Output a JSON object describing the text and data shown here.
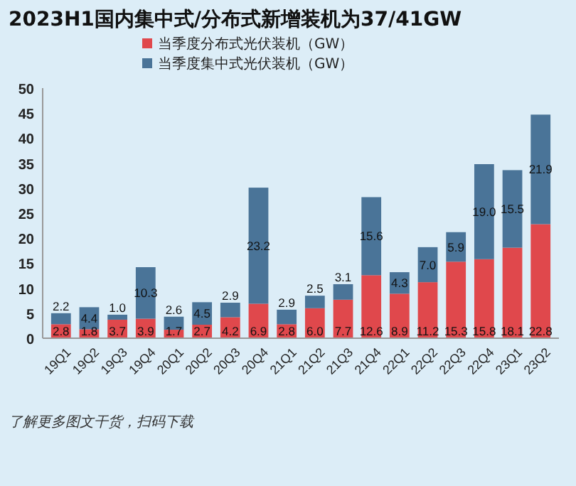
{
  "chart_data": {
    "type": "bar",
    "stacked": true,
    "title": "2023H1国内集中式/分布式新增装机为37/41GW",
    "categories": [
      "19Q1",
      "19Q2",
      "19Q3",
      "19Q4",
      "20Q1",
      "20Q2",
      "20Q3",
      "20Q4",
      "21Q1",
      "21Q2",
      "21Q3",
      "21Q4",
      "22Q1",
      "22Q2",
      "22Q3",
      "22Q4",
      "23Q1",
      "23Q2"
    ],
    "series": [
      {
        "name": "当季度分布式光伏装机（GW）",
        "color": "#e0484c",
        "values": [
          2.8,
          1.8,
          3.7,
          3.9,
          1.7,
          2.7,
          4.2,
          6.9,
          2.8,
          6.0,
          7.7,
          12.6,
          8.9,
          11.2,
          15.3,
          15.8,
          18.1,
          22.8
        ],
        "value_labels": [
          "2.8",
          "1.8",
          "3.7",
          "3.9",
          "1.7",
          "2.7",
          "4.2",
          "6.9",
          "2.8",
          "6.0",
          "7.7",
          "12.6",
          "8.9",
          "11.2",
          "15.3",
          "15.8",
          "18.1",
          "22.8"
        ]
      },
      {
        "name": "当季度集中式光伏装机（GW）",
        "color": "#4a7498",
        "values": [
          2.2,
          4.4,
          1.0,
          10.3,
          2.6,
          4.5,
          2.9,
          23.2,
          2.9,
          2.5,
          3.1,
          15.6,
          4.3,
          7.0,
          5.9,
          19.0,
          15.5,
          21.9
        ],
        "value_labels": [
          "2.2",
          "4.4",
          "1.0",
          "10.3",
          "2.6",
          "4.5",
          "2.9",
          "23.2",
          "2.9",
          "2.5",
          "3.1",
          "15.6",
          "4.3",
          "7.0",
          "5.9",
          "19.0",
          "15.5",
          "21.9"
        ]
      }
    ],
    "ylim": [
      0,
      50
    ],
    "yticks": [
      0,
      5,
      10,
      15,
      20,
      25,
      30,
      35,
      40,
      45,
      50
    ],
    "legend": "top left",
    "annotations": [
      "了解更多图文干货，扫码下载"
    ]
  }
}
